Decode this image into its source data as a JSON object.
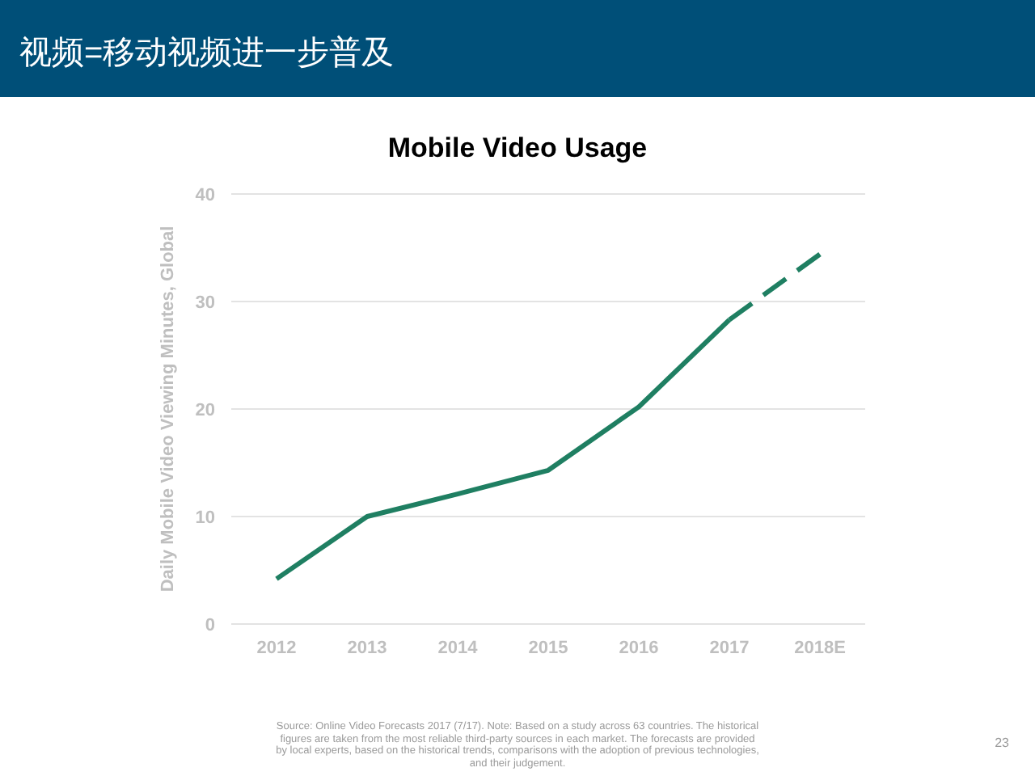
{
  "chart_data": {
    "type": "line",
    "title": "视频=移动视频进一步普及",
    "subtitle": "Mobile Video Usage",
    "ylabel": "Daily Mobile Video Viewing Minutes, Global",
    "categories": [
      "2012",
      "2013",
      "2014",
      "2015",
      "2016",
      "2017",
      "2018E"
    ],
    "series": [
      {
        "color": "#1f7f62",
        "line_style": "solid",
        "values": [
          4.2,
          10,
          12.1,
          14.3,
          20.2,
          28.3,
          null
        ]
      },
      {
        "color": "#1f7f62",
        "line_style": "dashed",
        "values": [
          null,
          null,
          null,
          null,
          null,
          28.3,
          34.4
        ]
      }
    ],
    "ylim": [
      0,
      40
    ],
    "yticks": [
      0,
      10,
      20,
      30,
      40
    ],
    "grid": "y",
    "annotations": [
      "Source: Online Video Forecasts 2017 (7/17).  Note: Based on a study across 63 countries. The historical figures are taken from the most reliable third-party sources in each market. The forecasts are provided by local experts, based on the historical trends, comparisons with the adoption of previous technologies, and their judgement.",
      "23"
    ]
  }
}
